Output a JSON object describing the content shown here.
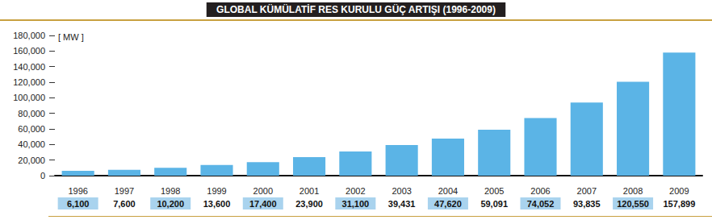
{
  "chart_data": {
    "type": "bar",
    "title": "GLOBAL KÜMÜLATİF RES KURULU GÜÇ ARTIŞI (1996-2009)",
    "y_label": "[ MW ]",
    "categories": [
      "1996",
      "1997",
      "1998",
      "1999",
      "2000",
      "2001",
      "2002",
      "2003",
      "2004",
      "2005",
      "2006",
      "2007",
      "2008",
      "2009"
    ],
    "values": [
      6100,
      7600,
      10200,
      13600,
      17400,
      23900,
      31100,
      39431,
      47620,
      59091,
      74052,
      93835,
      120550,
      157899
    ],
    "value_labels": [
      "6,100",
      "7,600",
      "10,200",
      "13,600",
      "17,400",
      "23,900",
      "31,100",
      "39,431",
      "47,620",
      "59,091",
      "74,052",
      "93,835",
      "120,550",
      "157,899"
    ],
    "data_labels": true,
    "color": "#5bb4e6",
    "ylim": [
      0,
      180000
    ],
    "yticks": [
      0,
      {
        "value": 20000,
        "label": "20,000"
      },
      {
        "value": 40000,
        "label": "40,000"
      },
      {
        "value": 60000,
        "label": "60,000"
      },
      {
        "value": 80000,
        "label": "80,000"
      },
      {
        "value": 100000,
        "label": "100,000"
      },
      {
        "value": 120000,
        "label": "120,000"
      },
      {
        "value": 140000,
        "label": "140,000"
      },
      {
        "value": 160000,
        "label": "160,000"
      },
      {
        "value": 180000,
        "label": "180,000"
      }
    ],
    "grid": false
  }
}
